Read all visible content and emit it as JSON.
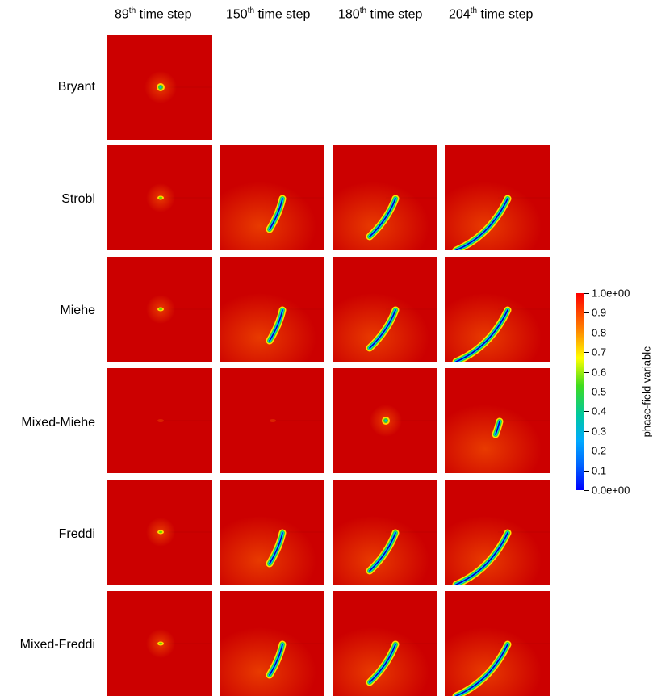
{
  "columns": [
    {
      "num": "89",
      "sup": "th",
      "rest": " time step"
    },
    {
      "num": "150",
      "sup": "th",
      "rest": " time step"
    },
    {
      "num": "180",
      "sup": "th",
      "rest": " time step"
    },
    {
      "num": "204",
      "sup": "th",
      "rest": " time step"
    }
  ],
  "rows": [
    "Bryant",
    "Strobl",
    "Miehe",
    "Mixed-Miehe",
    "Freddi",
    "Mixed-Freddi"
  ],
  "colorbar": {
    "title": "phase-field variable",
    "ticks": [
      "1.0e+00",
      "0.9",
      "0.8",
      "0.7",
      "0.6",
      "0.5",
      "0.4",
      "0.3",
      "0.2",
      "0.1",
      "0.0e+00"
    ],
    "colors": {
      "max": "#ff0000",
      "min": "#0000ff",
      "background": "#cc0000"
    }
  },
  "crack_states": {
    "Bryant": [
      "blob",
      null,
      null,
      null
    ],
    "Strobl": [
      "dot",
      "short",
      "medium",
      "long"
    ],
    "Miehe": [
      "dot",
      "short",
      "medium",
      "long"
    ],
    "Mixed-Miehe": [
      "faint",
      "faint",
      "blob",
      "tiny"
    ],
    "Freddi": [
      "dot",
      "short",
      "medium",
      "long"
    ],
    "Mixed-Freddi": [
      "dot",
      "short",
      "medium",
      "long"
    ]
  }
}
